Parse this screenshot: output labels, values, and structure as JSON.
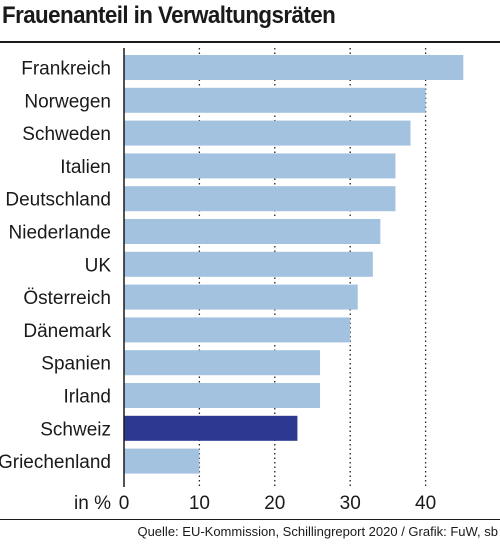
{
  "chart_data": {
    "type": "bar",
    "orientation": "horizontal",
    "title": "Frauenanteil in Verwaltungsräten",
    "categories": [
      "Frankreich",
      "Norwegen",
      "Schweden",
      "Italien",
      "Deutschland",
      "Niederlande",
      "UK",
      "Österreich",
      "Dänemark",
      "Spanien",
      "Irland",
      "Schweiz",
      "Griechenland"
    ],
    "values": [
      45,
      40,
      38,
      36,
      36,
      34,
      33,
      31,
      30,
      26,
      26,
      23,
      10
    ],
    "highlight_category": "Schweiz",
    "xlabel": "in %",
    "xlim": [
      0,
      49
    ],
    "xticks": [
      "0",
      "10",
      "20",
      "30",
      "40"
    ],
    "xtick_values": [
      0,
      10,
      20,
      30,
      40
    ],
    "grid": "vertical dotted",
    "source": "Quelle: EU-Kommission, Schillingreport 2020 / Grafik: FuW, sb"
  },
  "colors": {
    "bar": "#a3c2df",
    "bar_highlight": "#2b3990",
    "grid": "#222222",
    "axis": "#1a1a1a"
  }
}
